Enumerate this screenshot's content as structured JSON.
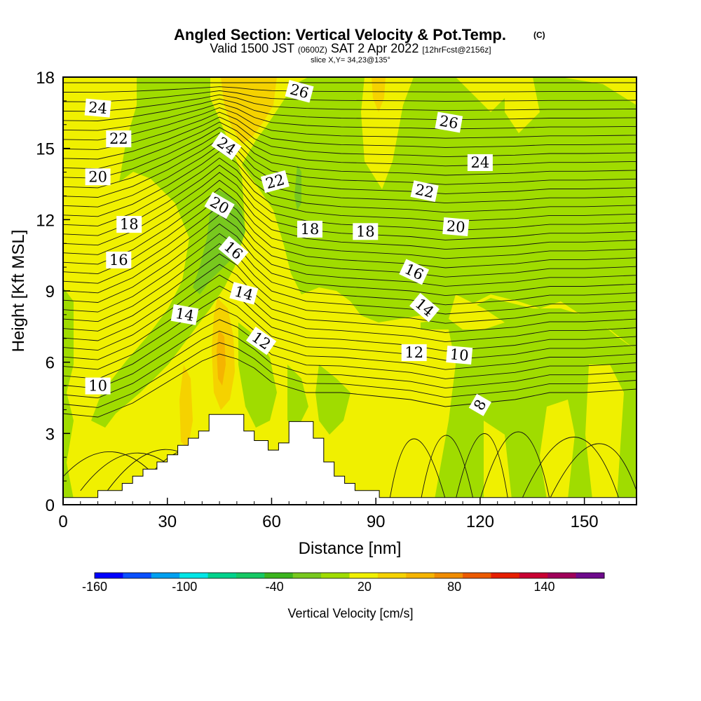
{
  "chart_data": {
    "type": "heatmap",
    "title": "Angled Section: Vertical Velocity & Pot.Temp.",
    "title_mark": "(C)",
    "subtitle": {
      "valid": "Valid 1500 JST",
      "utc": "(0600Z)",
      "date": "SAT 2 Apr 2022",
      "forecast": "[12hrFcst@2156z]"
    },
    "slice_label": "slice X,Y= 34,23@135°",
    "xlabel": "Distance [nm]",
    "ylabel": "Height [Kft MSL]",
    "xlim": [
      0,
      165
    ],
    "ylim": [
      0,
      18
    ],
    "x_ticks": [
      0,
      30,
      60,
      90,
      120,
      150
    ],
    "y_ticks": [
      0,
      3,
      6,
      9,
      12,
      15,
      18
    ],
    "colorbar": {
      "label": "Vertical Velocity [cm/s]",
      "range": [
        -160,
        180
      ],
      "ticks": [
        -160,
        -100,
        -40,
        20,
        80,
        140
      ],
      "colors": [
        "#0000ff",
        "#0a50ff",
        "#00a0f0",
        "#00e6e6",
        "#00d28c",
        "#16c864",
        "#3cb41e",
        "#78c81e",
        "#a0dc00",
        "#f0f000",
        "#f5d200",
        "#f5b400",
        "#f08c00",
        "#eb5a00",
        "#e61e00",
        "#c80032",
        "#a0005a",
        "#6e0a8c"
      ]
    },
    "theta_contour_labels": [
      {
        "label": "24",
        "x": 10,
        "y": 16.7
      },
      {
        "label": "22",
        "x": 16,
        "y": 15.4
      },
      {
        "label": "20",
        "x": 10,
        "y": 13.8
      },
      {
        "label": "18",
        "x": 19,
        "y": 11.8
      },
      {
        "label": "16",
        "x": 16,
        "y": 10.3
      },
      {
        "label": "10",
        "x": 10,
        "y": 5.0
      },
      {
        "label": "26",
        "x": 68,
        "y": 17.4
      },
      {
        "label": "26",
        "x": 111,
        "y": 16.1
      },
      {
        "label": "24",
        "x": 47,
        "y": 15.1
      },
      {
        "label": "24",
        "x": 120,
        "y": 14.4
      },
      {
        "label": "22",
        "x": 61,
        "y": 13.6
      },
      {
        "label": "22",
        "x": 104,
        "y": 13.2
      },
      {
        "label": "20",
        "x": 45,
        "y": 12.6
      },
      {
        "label": "20",
        "x": 113,
        "y": 11.7
      },
      {
        "label": "18",
        "x": 71,
        "y": 11.6
      },
      {
        "label": "18",
        "x": 87,
        "y": 11.5
      },
      {
        "label": "16",
        "x": 49,
        "y": 10.7
      },
      {
        "label": "16",
        "x": 101,
        "y": 9.8
      },
      {
        "label": "14",
        "x": 52,
        "y": 8.9
      },
      {
        "label": "14",
        "x": 104,
        "y": 8.3
      },
      {
        "label": "14",
        "x": 35,
        "y": 8.0
      },
      {
        "label": "12",
        "x": 57,
        "y": 6.9
      },
      {
        "label": "12",
        "x": 101,
        "y": 6.4
      },
      {
        "label": "10",
        "x": 114,
        "y": 6.3
      },
      {
        "label": "8",
        "x": 120,
        "y": 4.2
      }
    ],
    "terrain_profile": [
      {
        "x": 0,
        "h": 0.3
      },
      {
        "x": 10,
        "h": 0.3
      },
      {
        "x": 10,
        "h": 0.6
      },
      {
        "x": 17,
        "h": 0.6
      },
      {
        "x": 17,
        "h": 0.9
      },
      {
        "x": 20,
        "h": 0.9
      },
      {
        "x": 20,
        "h": 1.2
      },
      {
        "x": 23,
        "h": 1.2
      },
      {
        "x": 23,
        "h": 1.5
      },
      {
        "x": 27,
        "h": 1.5
      },
      {
        "x": 27,
        "h": 1.8
      },
      {
        "x": 30,
        "h": 1.8
      },
      {
        "x": 30,
        "h": 2.1
      },
      {
        "x": 33,
        "h": 2.1
      },
      {
        "x": 33,
        "h": 2.5
      },
      {
        "x": 36,
        "h": 2.5
      },
      {
        "x": 36,
        "h": 2.8
      },
      {
        "x": 39,
        "h": 2.8
      },
      {
        "x": 39,
        "h": 3.1
      },
      {
        "x": 42,
        "h": 3.1
      },
      {
        "x": 42,
        "h": 3.8
      },
      {
        "x": 52,
        "h": 3.8
      },
      {
        "x": 52,
        "h": 3.1
      },
      {
        "x": 55,
        "h": 3.1
      },
      {
        "x": 55,
        "h": 2.7
      },
      {
        "x": 59,
        "h": 2.7
      },
      {
        "x": 59,
        "h": 2.3
      },
      {
        "x": 62,
        "h": 2.3
      },
      {
        "x": 62,
        "h": 2.6
      },
      {
        "x": 65,
        "h": 2.6
      },
      {
        "x": 65,
        "h": 3.5
      },
      {
        "x": 72,
        "h": 3.5
      },
      {
        "x": 72,
        "h": 2.8
      },
      {
        "x": 75,
        "h": 2.8
      },
      {
        "x": 75,
        "h": 1.8
      },
      {
        "x": 78,
        "h": 1.8
      },
      {
        "x": 78,
        "h": 1.2
      },
      {
        "x": 81,
        "h": 1.2
      },
      {
        "x": 81,
        "h": 0.9
      },
      {
        "x": 84,
        "h": 0.9
      },
      {
        "x": 84,
        "h": 0.6
      },
      {
        "x": 91,
        "h": 0.6
      },
      {
        "x": 91,
        "h": 0.3
      },
      {
        "x": 165,
        "h": 0.3
      }
    ]
  }
}
